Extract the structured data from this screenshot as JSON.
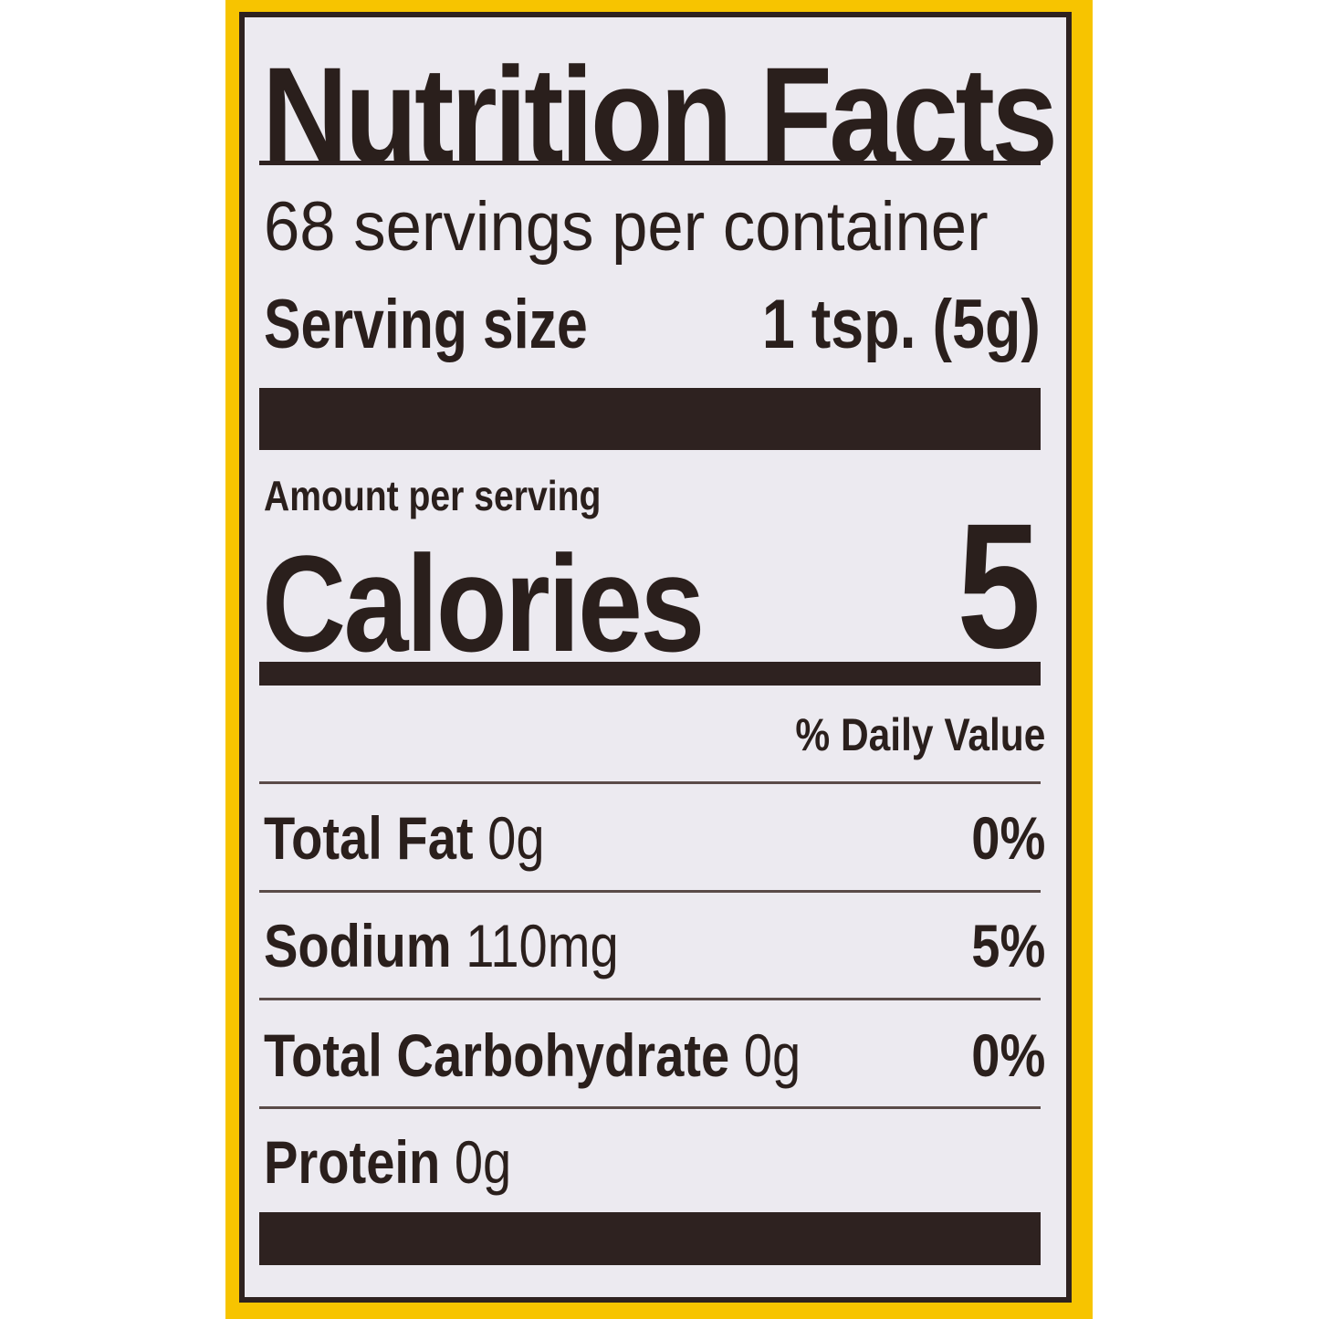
{
  "label": {
    "title": "Nutrition Facts",
    "servings_per_container": "68 servings per container",
    "serving_size_label": "Serving size",
    "serving_size_value": "1 tsp. (5g)",
    "amount_per_serving": "Amount per serving",
    "calories_label": "Calories",
    "calories_value": "5",
    "daily_value_header": "% Daily Value",
    "nutrients": [
      {
        "name": "Total Fat",
        "amount": "0g",
        "dv": "0%"
      },
      {
        "name": "Sodium",
        "amount": "110mg",
        "dv": "5%"
      },
      {
        "name": "Total Carbohydrate",
        "amount": "0g",
        "dv": "0%"
      },
      {
        "name": "Protein",
        "amount": "0g",
        "dv": ""
      }
    ]
  },
  "colors": {
    "background_yellow": "#f7c400",
    "panel": "#eceaf0",
    "ink": "#2e2220"
  }
}
